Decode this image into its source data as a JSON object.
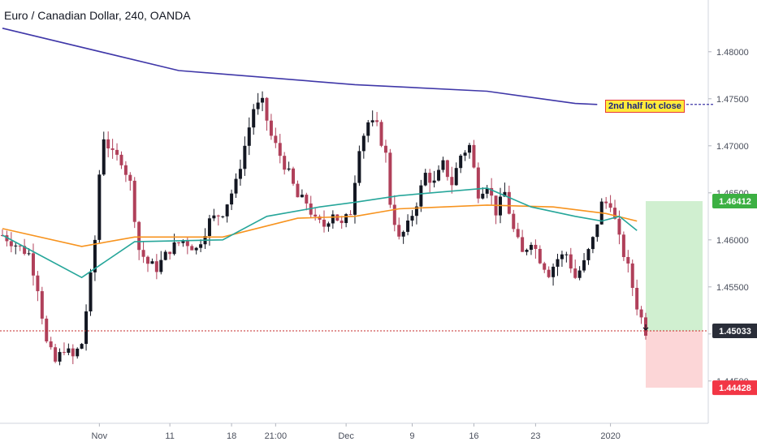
{
  "chart_data": {
    "type": "candlestick",
    "title": "Euro / Canadian Dollar, 240, OANDA",
    "ylim": [
      1.4405,
      1.4855
    ],
    "y_ticks": [
      "1.48000",
      "1.47500",
      "1.47000",
      "1.46500",
      "1.46000",
      "1.45500",
      "1.45000",
      "1.44500"
    ],
    "x_ticks": [
      "Nov",
      "11",
      "18",
      "21:00",
      "Dec",
      "9",
      "16",
      "23",
      "2020"
    ],
    "price_labels": {
      "take_profit": "1.46412",
      "entry": "1.45033",
      "stop_loss": "1.44428"
    },
    "annotation": "2nd half lot close",
    "colors": {
      "up": "#131722",
      "down": "#b0405a",
      "ma_long": "#3f37a8",
      "ma_mid": "#f7931e",
      "ma_short": "#26a69a",
      "profit_zone": "#c8ecc8",
      "loss_zone": "#fbcfd0",
      "take_profit_tag": "#3cb043",
      "entry_tag": "#2a2e39",
      "stop_tag": "#f23645",
      "entry_line": "#c62828"
    },
    "candle_close_path": [
      [
        0,
        1.4605
      ],
      [
        3,
        1.4595
      ],
      [
        6,
        1.4585
      ],
      [
        8,
        1.455
      ],
      [
        10,
        1.449
      ],
      [
        12,
        1.447
      ],
      [
        14,
        1.4485
      ],
      [
        16,
        1.4475
      ],
      [
        18,
        1.449
      ],
      [
        20,
        1.456
      ],
      [
        21,
        1.46
      ],
      [
        22,
        1.467
      ],
      [
        23,
        1.471
      ],
      [
        25,
        1.469
      ],
      [
        27,
        1.4685
      ],
      [
        29,
        1.466
      ],
      [
        31,
        1.459
      ],
      [
        33,
        1.4575
      ],
      [
        35,
        1.457
      ],
      [
        38,
        1.459
      ],
      [
        41,
        1.46
      ],
      [
        44,
        1.459
      ],
      [
        47,
        1.462
      ],
      [
        50,
        1.463
      ],
      [
        53,
        1.466
      ],
      [
        55,
        1.47
      ],
      [
        57,
        1.474
      ],
      [
        59,
        1.4745
      ],
      [
        61,
        1.471
      ],
      [
        63,
        1.469
      ],
      [
        65,
        1.467
      ],
      [
        67,
        1.4645
      ],
      [
        69,
        1.464
      ],
      [
        71,
        1.462
      ],
      [
        73,
        1.4615
      ],
      [
        75,
        1.463
      ],
      [
        77,
        1.4615
      ],
      [
        79,
        1.463
      ],
      [
        81,
        1.47
      ],
      [
        83,
        1.4725
      ],
      [
        85,
        1.472
      ],
      [
        87,
        1.469
      ],
      [
        88,
        1.464
      ],
      [
        90,
        1.46
      ],
      [
        92,
        1.4615
      ],
      [
        94,
        1.464
      ],
      [
        96,
        1.467
      ],
      [
        98,
        1.466
      ],
      [
        100,
        1.468
      ],
      [
        102,
        1.466
      ],
      [
        104,
        1.469
      ],
      [
        106,
        1.47
      ],
      [
        108,
        1.465
      ],
      [
        110,
        1.466
      ],
      [
        112,
        1.463
      ],
      [
        114,
        1.465
      ],
      [
        116,
        1.461
      ],
      [
        118,
        1.4585
      ],
      [
        120,
        1.46
      ],
      [
        122,
        1.458
      ],
      [
        124,
        1.4565
      ],
      [
        126,
        1.458
      ],
      [
        128,
        1.4585
      ],
      [
        130,
        1.456
      ],
      [
        132,
        1.4575
      ],
      [
        134,
        1.46
      ],
      [
        136,
        1.4638
      ],
      [
        138,
        1.464
      ],
      [
        140,
        1.46
      ],
      [
        142,
        1.457
      ],
      [
        144,
        1.453
      ],
      [
        146,
        1.4503
      ]
    ],
    "ma_long_path": [
      [
        0,
        1.4825
      ],
      [
        40,
        1.478
      ],
      [
        80,
        1.4765
      ],
      [
        110,
        1.4758
      ],
      [
        130,
        1.4745
      ],
      [
        135,
        1.4744
      ]
    ],
    "ma_mid_path": [
      [
        0,
        1.4612
      ],
      [
        18,
        1.4593
      ],
      [
        30,
        1.4603
      ],
      [
        50,
        1.4603
      ],
      [
        67,
        1.4623
      ],
      [
        80,
        1.4625
      ],
      [
        90,
        1.4633
      ],
      [
        110,
        1.4637
      ],
      [
        125,
        1.4635
      ],
      [
        137,
        1.4628
      ],
      [
        144,
        1.462
      ]
    ],
    "ma_short_path": [
      [
        0,
        1.4605
      ],
      [
        18,
        1.456
      ],
      [
        30,
        1.4598
      ],
      [
        50,
        1.46
      ],
      [
        60,
        1.4625
      ],
      [
        72,
        1.4635
      ],
      [
        80,
        1.464
      ],
      [
        90,
        1.4647
      ],
      [
        110,
        1.4655
      ],
      [
        120,
        1.4635
      ],
      [
        130,
        1.4625
      ],
      [
        136,
        1.462
      ],
      [
        140,
        1.4625
      ],
      [
        144,
        1.461
      ]
    ]
  }
}
